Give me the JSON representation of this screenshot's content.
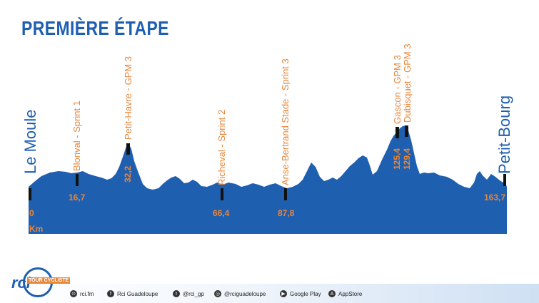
{
  "title": "PREMIÈRE ÉTAPE",
  "start_city": "Le Moule",
  "end_city": "Petit-Bourg",
  "unit": "Km",
  "profile_color": "#1f5fb0",
  "accent_color": "#e8863a",
  "points": [
    {
      "label": "Blonval - Sprint 1",
      "distance": "16,7",
      "marker": "down"
    },
    {
      "label": "Petit-Havre - GPM 3",
      "distance": "32,2",
      "marker": "summit"
    },
    {
      "label": "Richeval - Sprint 2",
      "distance": "66,4",
      "marker": "down"
    },
    {
      "label": "Anse-Bertrand Stade - Sprint 3",
      "distance": "87,8",
      "marker": "down"
    },
    {
      "label": "Gascon - GPM 3",
      "distance": "125,4",
      "marker": "summit"
    },
    {
      "label": "Dubisquet - GPM 3",
      "distance": "129,4",
      "marker": "summit"
    }
  ],
  "start_distance": "0",
  "end_distance": "163,7",
  "footer": {
    "logo_text": "rci",
    "logo_sub": "TOUR CYCLISTE",
    "items": [
      {
        "icon": "globe-icon",
        "glyph": "⊙",
        "text": "rci.fm"
      },
      {
        "icon": "facebook-icon",
        "glyph": "f",
        "text": "Rci Guadeloupe"
      },
      {
        "icon": "twitter-icon",
        "glyph": "t",
        "text": "@rci_gp"
      },
      {
        "icon": "instagram-icon",
        "glyph": "◎",
        "text": "@rciguadeloupe"
      },
      {
        "icon": "google-play-icon",
        "glyph": "▶",
        "text": "Google Play"
      },
      {
        "icon": "appstore-icon",
        "glyph": "A",
        "text": "AppStore"
      }
    ]
  }
}
